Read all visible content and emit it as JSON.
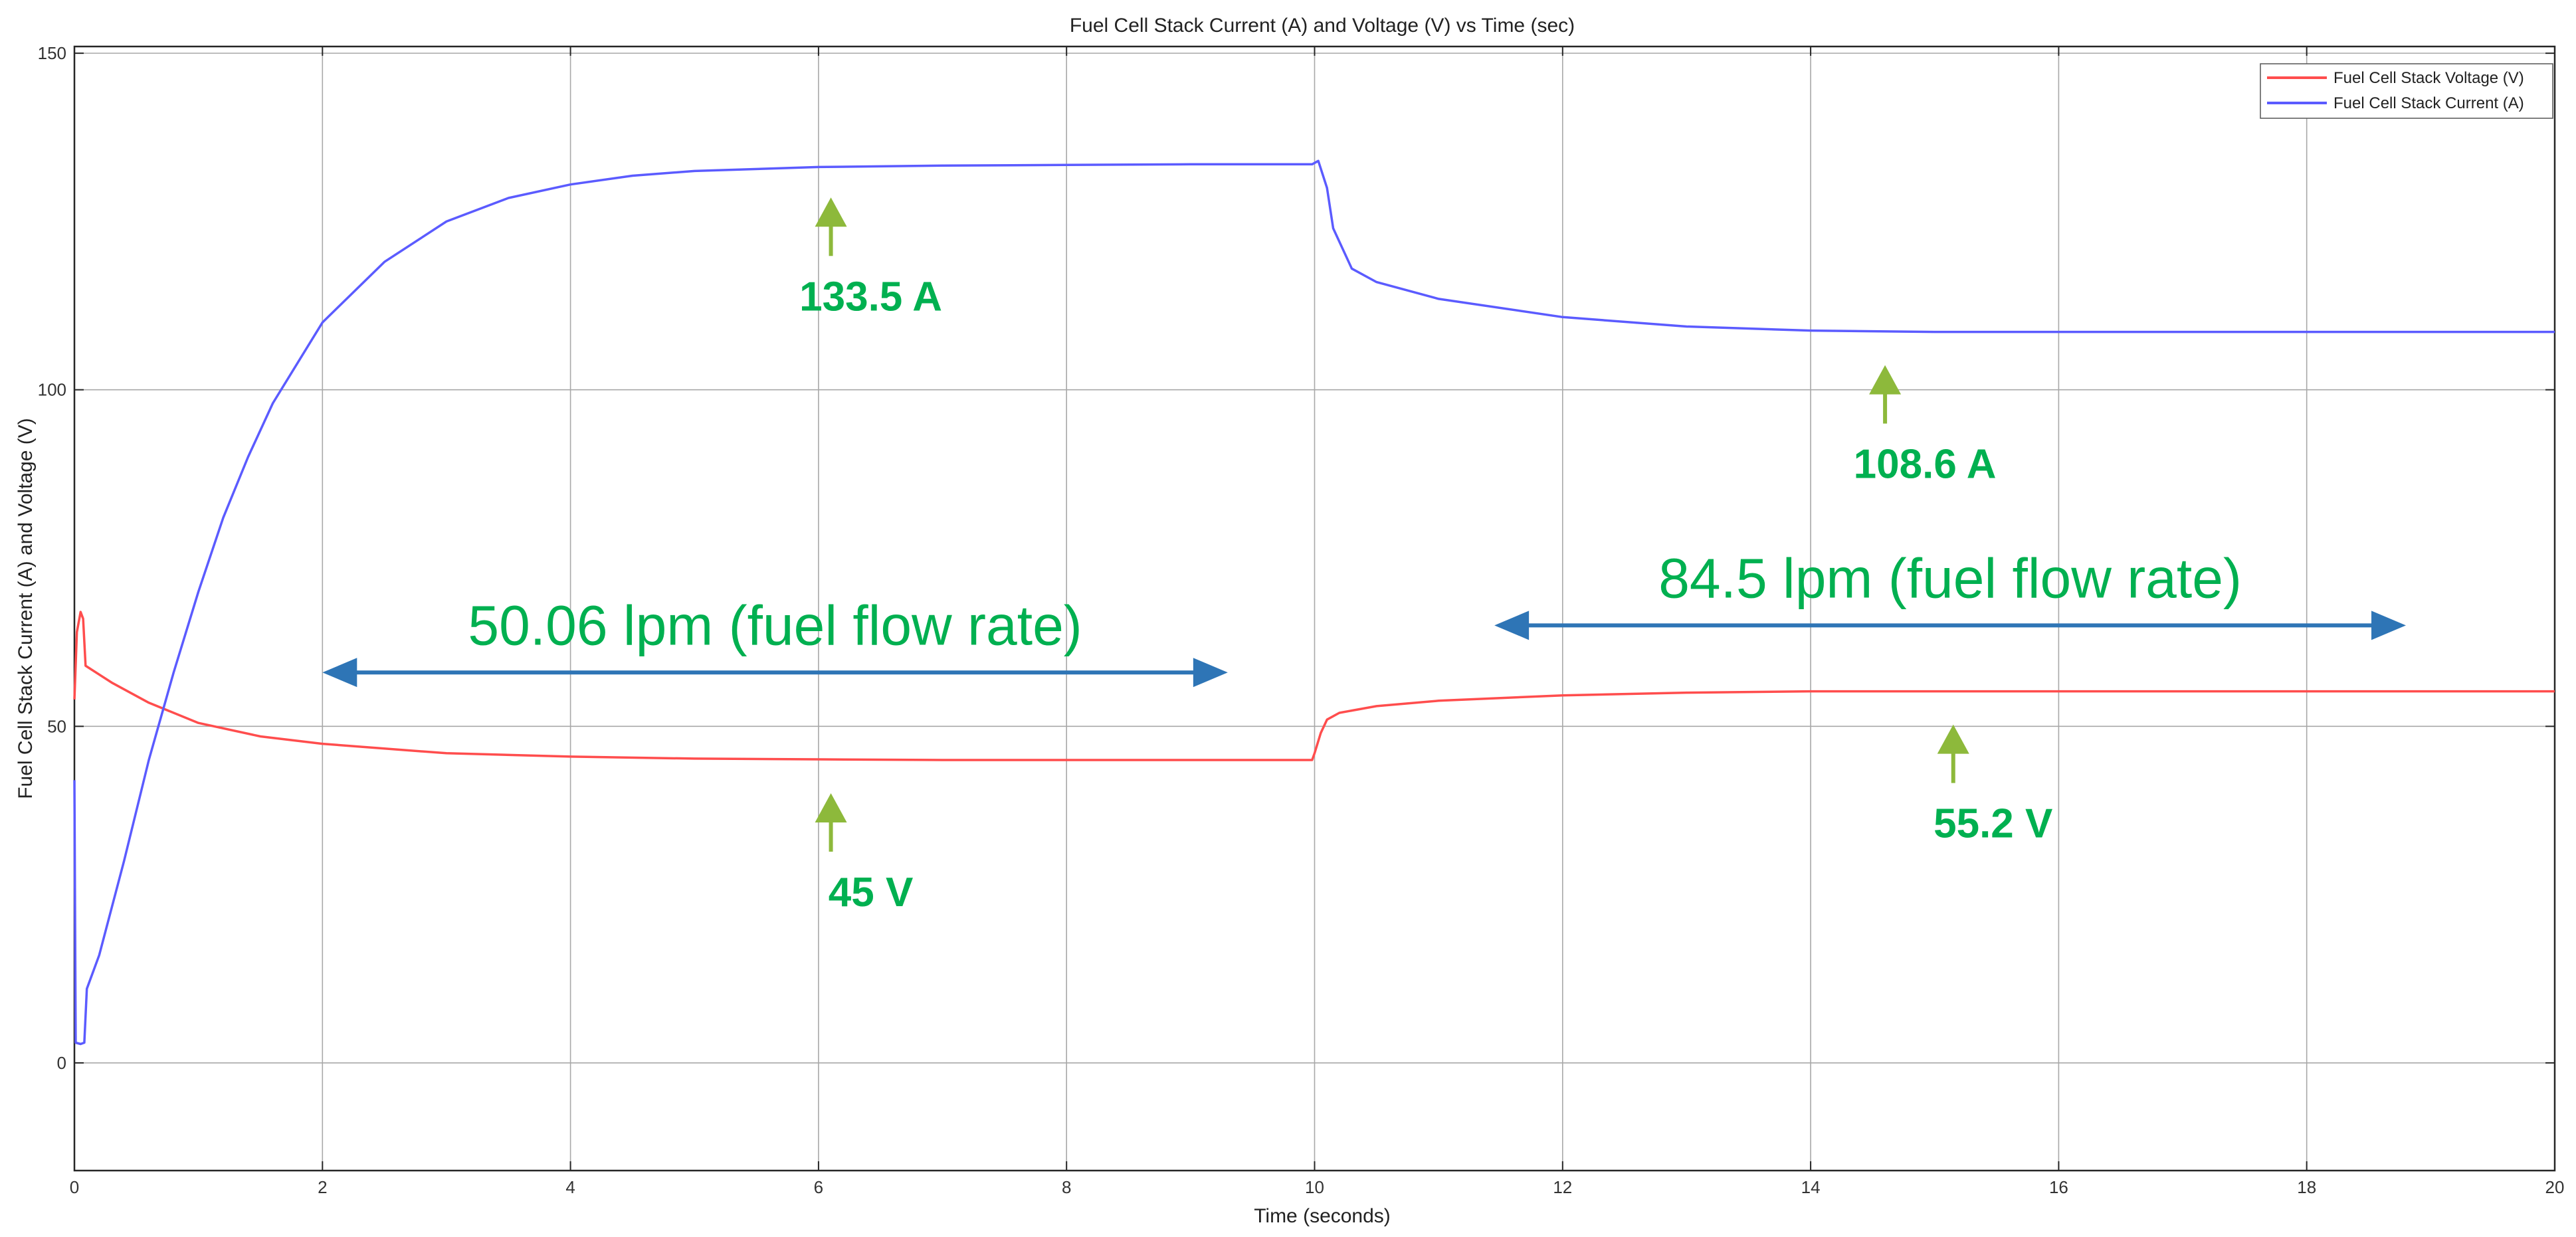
{
  "chart_data": {
    "type": "line",
    "title": "Fuel Cell Stack Current (A) and Voltage (V) vs Time (sec)",
    "xlabel": "Time (seconds)",
    "ylabel": "Fuel Cell Stack Current (A) and Voltage (V)",
    "xlim": [
      0,
      20
    ],
    "ylim": [
      -16,
      151
    ],
    "xticks": [
      0,
      2,
      4,
      6,
      8,
      10,
      12,
      14,
      16,
      18,
      20
    ],
    "yticks": [
      0,
      50,
      100,
      150
    ],
    "grid": true,
    "legend_position": "top-right",
    "series": [
      {
        "name": "Fuel Cell Stack Voltage (V)",
        "color": "#ff4d4d",
        "points": [
          [
            0,
            54
          ],
          [
            0.02,
            64
          ],
          [
            0.05,
            67
          ],
          [
            0.07,
            66
          ],
          [
            0.09,
            59
          ],
          [
            0.3,
            56.5
          ],
          [
            0.6,
            53.5
          ],
          [
            1.0,
            50.5
          ],
          [
            1.5,
            48.5
          ],
          [
            2.0,
            47.4
          ],
          [
            3.0,
            46.0
          ],
          [
            4.0,
            45.5
          ],
          [
            5.0,
            45.2
          ],
          [
            6.0,
            45.1
          ],
          [
            7.0,
            45.0
          ],
          [
            8.0,
            45.0
          ],
          [
            9.0,
            45.0
          ],
          [
            9.98,
            45.0
          ],
          [
            10.0,
            46.0
          ],
          [
            10.05,
            49.0
          ],
          [
            10.1,
            51.0
          ],
          [
            10.2,
            52.0
          ],
          [
            10.5,
            53.0
          ],
          [
            11.0,
            53.8
          ],
          [
            12.0,
            54.6
          ],
          [
            13.0,
            55.0
          ],
          [
            14.0,
            55.2
          ],
          [
            16.0,
            55.2
          ],
          [
            18.0,
            55.2
          ],
          [
            20.0,
            55.2
          ]
        ]
      },
      {
        "name": "Fuel Cell Stack Current (A)",
        "color": "#5b5bff",
        "points": [
          [
            0,
            42
          ],
          [
            0.01,
            3
          ],
          [
            0.05,
            2.8
          ],
          [
            0.08,
            3
          ],
          [
            0.1,
            11
          ],
          [
            0.2,
            16
          ],
          [
            0.4,
            30
          ],
          [
            0.6,
            45
          ],
          [
            0.8,
            58
          ],
          [
            1.0,
            70
          ],
          [
            1.2,
            81
          ],
          [
            1.4,
            90
          ],
          [
            1.6,
            98
          ],
          [
            2.0,
            110
          ],
          [
            2.5,
            119
          ],
          [
            3.0,
            125
          ],
          [
            3.5,
            128.5
          ],
          [
            4.0,
            130.5
          ],
          [
            4.5,
            131.8
          ],
          [
            5.0,
            132.5
          ],
          [
            6.0,
            133.1
          ],
          [
            7.0,
            133.3
          ],
          [
            8.0,
            133.4
          ],
          [
            9.0,
            133.5
          ],
          [
            9.98,
            133.5
          ],
          [
            10.03,
            134.0
          ],
          [
            10.1,
            130.0
          ],
          [
            10.15,
            124.0
          ],
          [
            10.3,
            118.0
          ],
          [
            10.5,
            116.0
          ],
          [
            11.0,
            113.5
          ],
          [
            12.0,
            110.8
          ],
          [
            13.0,
            109.4
          ],
          [
            14.0,
            108.8
          ],
          [
            15.0,
            108.6
          ],
          [
            17.0,
            108.6
          ],
          [
            20.0,
            108.6
          ]
        ]
      }
    ],
    "annotations": {
      "values": [
        {
          "text": "133.5 A",
          "x": 6.1,
          "y": 133.5
        },
        {
          "text": "45 V",
          "x": 6.1,
          "y": 45.0
        },
        {
          "text": "108.6 A",
          "x": 14.6,
          "y": 108.6
        },
        {
          "text": "55.2 V",
          "x": 15.15,
          "y": 55.2
        }
      ],
      "flow_rates": [
        {
          "text": "50.06 lpm (fuel flow rate)",
          "x_start": 2.0,
          "x_end": 9.3,
          "y": 58
        },
        {
          "text": "84.5 lpm (fuel flow rate)",
          "x_start": 11.45,
          "x_end": 18.8,
          "y": 65
        }
      ]
    },
    "annotation_colors": {
      "text": "#00b050",
      "up_arrow": "#8db93b",
      "flow_arrow": "#2e75b6"
    }
  }
}
